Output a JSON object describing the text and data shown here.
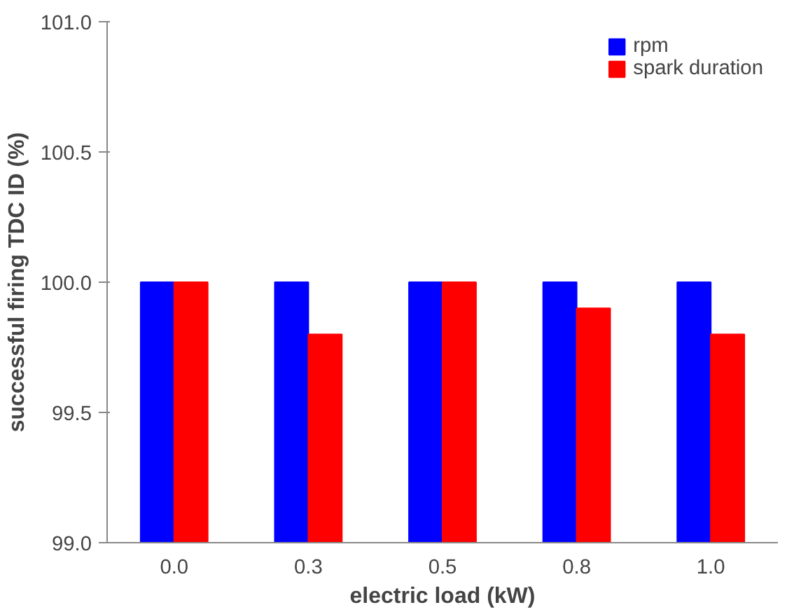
{
  "chart_data": {
    "type": "bar",
    "xlabel": "electric load (kW)",
    "ylabel": "successful firing TDC ID (%)",
    "categories": [
      "0.0",
      "0.3",
      "0.5",
      "0.8",
      "1.0"
    ],
    "series": [
      {
        "name": "rpm",
        "color": "#0000ff",
        "values": [
          100.0,
          100.0,
          100.0,
          100.0,
          100.0
        ]
      },
      {
        "name": "spark duration",
        "color": "#ff0000",
        "values": [
          100.0,
          99.8,
          100.0,
          99.9,
          99.8
        ]
      }
    ],
    "ylim": [
      99.0,
      101.0
    ],
    "yticks": [
      {
        "value": 99.0,
        "label": "99.0"
      },
      {
        "value": 99.5,
        "label": "99.5"
      },
      {
        "value": 100.0,
        "label": "100.0"
      },
      {
        "value": 100.5,
        "label": "100.5"
      },
      {
        "value": 101.0,
        "label": "101.0"
      }
    ],
    "grid": false,
    "legend": "top right"
  }
}
